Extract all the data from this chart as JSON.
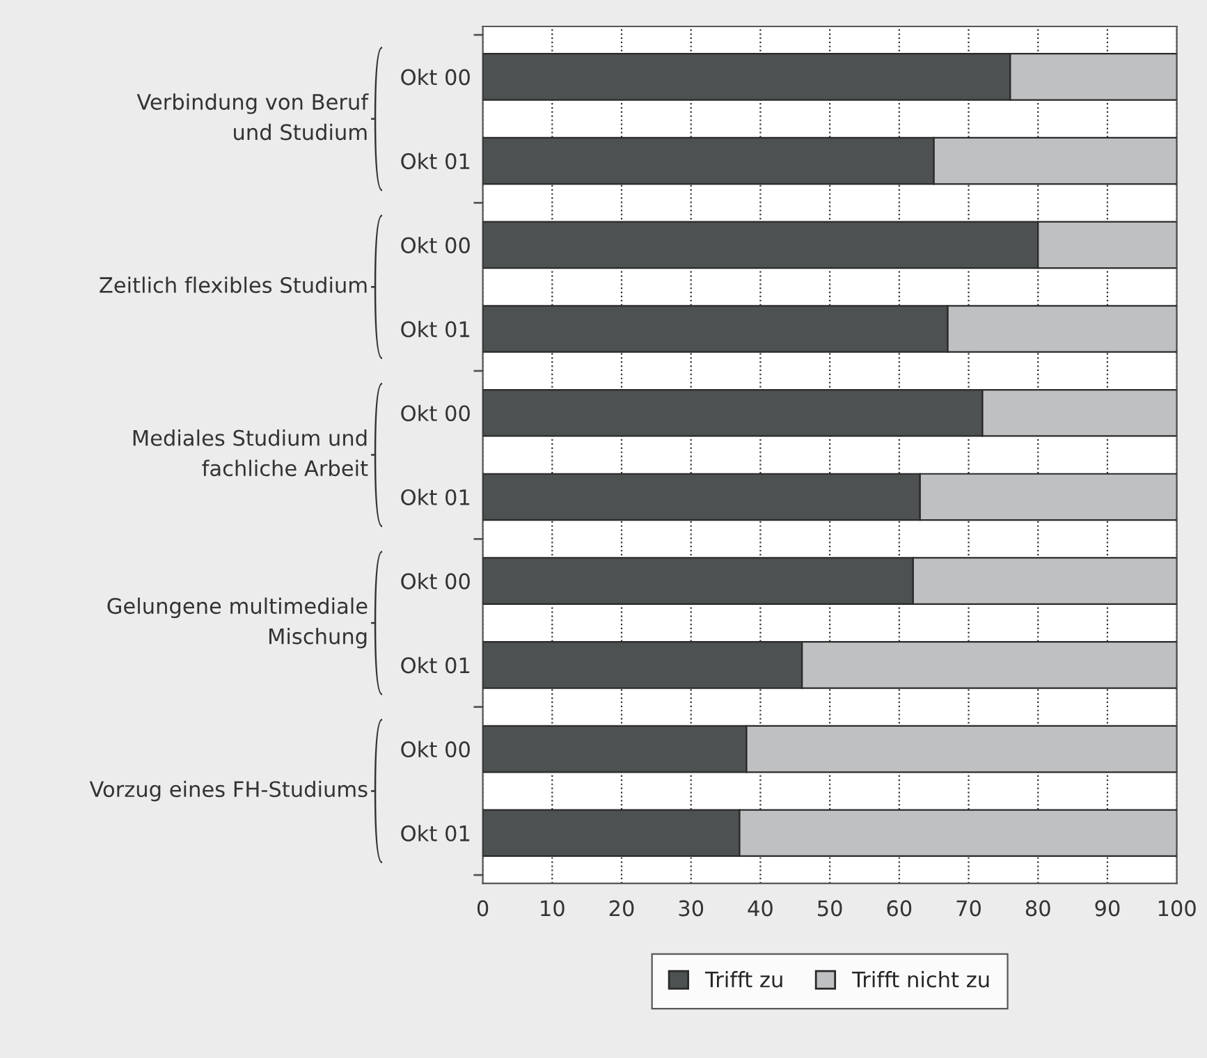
{
  "chart_data": {
    "type": "bar",
    "orientation": "horizontal",
    "stacked": true,
    "categories": [
      "Okt 00",
      "Okt 01",
      "Okt 00",
      "Okt 01",
      "Okt 00",
      "Okt 01",
      "Okt 00",
      "Okt 01",
      "Okt 00",
      "Okt 01"
    ],
    "series": [
      {
        "name": "Trifft zu",
        "color": "#4d5152",
        "values": [
          76,
          65,
          80,
          67,
          72,
          63,
          62,
          46,
          38,
          37
        ]
      },
      {
        "name": "Trifft nicht zu",
        "color": "#bfc0c2",
        "values": [
          24,
          35,
          20,
          33,
          28,
          37,
          38,
          54,
          62,
          63
        ]
      }
    ],
    "annotations": [
      "Verbindung von Beruf\nund Studium",
      "Zeitlich flexibles Studium",
      "Mediales Studium und\nfachliche Arbeit",
      "Gelungene multimediale\nMischung",
      "Vorzug eines FH-Studiums"
    ],
    "xlim": [
      0,
      100
    ],
    "xticks": [
      0,
      10,
      20,
      30,
      40,
      50,
      60,
      70,
      80,
      90,
      100
    ],
    "grid": "x",
    "legend": "bottom"
  }
}
